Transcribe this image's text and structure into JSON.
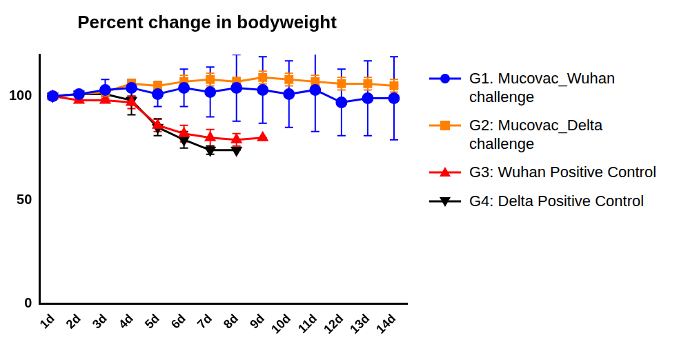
{
  "chart_data": {
    "type": "line",
    "title": "Percent change in bodyweight",
    "categories": [
      "1d",
      "2d",
      "3d",
      "4d",
      "5d",
      "6d",
      "7d",
      "8d",
      "9d",
      "10d",
      "11d",
      "12d",
      "13d",
      "14d"
    ],
    "ylim": [
      0,
      120
    ],
    "yticks": [
      0,
      50,
      100
    ],
    "grid": false,
    "legend": "right",
    "series": [
      {
        "name": "G1. Mucovac_Wuhan challenge",
        "color": "#0000ff",
        "marker": "circle",
        "values": [
          100,
          101,
          103,
          104,
          101,
          104,
          102,
          104,
          103,
          101,
          103,
          97,
          99,
          99
        ],
        "errors": [
          0,
          1,
          5,
          4,
          6,
          9,
          12,
          16,
          16,
          16,
          20,
          16,
          18,
          20
        ]
      },
      {
        "name": "G2: Mucovac_Delta challenge",
        "color": "#ff8000",
        "marker": "square",
        "values": [
          100,
          101,
          102,
          106,
          105,
          107,
          108,
          107,
          109,
          108,
          107,
          106,
          106,
          105
        ],
        "errors": [
          2,
          1,
          2,
          2,
          2,
          3,
          3,
          2,
          3,
          3,
          3,
          3,
          3,
          3
        ]
      },
      {
        "name": "G3: Wuhan Positive Control",
        "color": "#ff0000",
        "marker": "triangle",
        "values": [
          100,
          98,
          98,
          97,
          86,
          82,
          80,
          79,
          80,
          null,
          null,
          null,
          null,
          null
        ],
        "errors": [
          0,
          1,
          1,
          3,
          3,
          4,
          4,
          3,
          0,
          null,
          null,
          null,
          null,
          null
        ]
      },
      {
        "name": "G4: Delta Positive Control",
        "color": "#000000",
        "marker": "triangle-down",
        "values": [
          100,
          101,
          101,
          98,
          85,
          79,
          74,
          74,
          null,
          null,
          null,
          null,
          null,
          null
        ],
        "errors": [
          0,
          1,
          1,
          7,
          4,
          4,
          2,
          0,
          null,
          null,
          null,
          null,
          null,
          null
        ]
      }
    ]
  }
}
